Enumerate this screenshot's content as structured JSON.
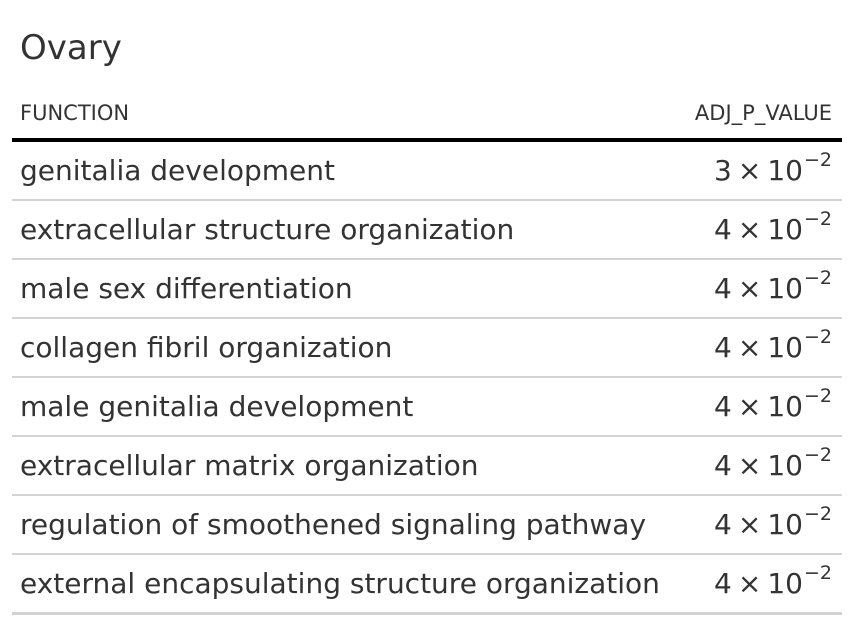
{
  "title": "Ovary",
  "columns": {
    "function": "FUNCTION",
    "adj_p_value": "ADJ_P_VALUE"
  },
  "rows": [
    {
      "function": "genitalia development",
      "coef": "3",
      "times": "×",
      "base": "10",
      "exp": "−2"
    },
    {
      "function": "extracellular structure organization",
      "coef": "4",
      "times": "×",
      "base": "10",
      "exp": "−2"
    },
    {
      "function": "male sex differentiation",
      "coef": "4",
      "times": "×",
      "base": "10",
      "exp": "−2"
    },
    {
      "function": "collagen fibril organization",
      "coef": "4",
      "times": "×",
      "base": "10",
      "exp": "−2"
    },
    {
      "function": "male genitalia development",
      "coef": "4",
      "times": "×",
      "base": "10",
      "exp": "−2"
    },
    {
      "function": "extracellular matrix organization",
      "coef": "4",
      "times": "×",
      "base": "10",
      "exp": "−2"
    },
    {
      "function": "regulation of smoothened signaling pathway",
      "coef": "4",
      "times": "×",
      "base": "10",
      "exp": "−2"
    },
    {
      "function": "external encapsulating structure organization",
      "coef": "4",
      "times": "×",
      "base": "10",
      "exp": "−2"
    }
  ]
}
